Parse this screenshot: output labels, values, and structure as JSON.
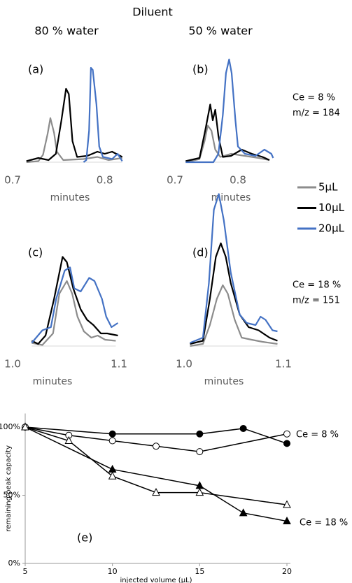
{
  "figure": {
    "title": "Diluent",
    "columns": [
      "80 % water",
      "50 % water"
    ],
    "row_notes": [
      [
        "Ce = 8 %",
        "m/z = 184"
      ],
      [
        "Ce = 18 %",
        "m/z = 151"
      ]
    ]
  },
  "chart_data": [
    {
      "type": "line",
      "panel": "(a)",
      "xlabel": "minutes",
      "xlim": [
        0.7,
        0.82
      ],
      "xticks": [
        0.7,
        0.8
      ],
      "ylim": [
        0,
        100
      ],
      "series": [
        {
          "name": "5µL",
          "color": "#8c8c8c",
          "x": [
            0.715,
            0.728,
            0.733,
            0.738,
            0.741,
            0.745,
            0.748,
            0.755,
            0.777,
            0.792,
            0.804,
            0.819
          ],
          "values": [
            0,
            1,
            7,
            27,
            42,
            28,
            10,
            2,
            3,
            5,
            2,
            4
          ]
        },
        {
          "name": "10µL",
          "color": "#000000",
          "x": [
            0.715,
            0.728,
            0.739,
            0.747,
            0.753,
            0.758,
            0.761,
            0.765,
            0.77,
            0.781,
            0.792,
            0.8,
            0.808,
            0.819
          ],
          "values": [
            1,
            4,
            2,
            8,
            40,
            70,
            65,
            20,
            5,
            6,
            10,
            8,
            10,
            5
          ]
        },
        {
          "name": "20µL",
          "color": "#4472c4",
          "x": [
            0.777,
            0.78,
            0.783,
            0.785,
            0.787,
            0.791,
            0.794,
            0.798,
            0.808,
            0.814,
            0.819
          ],
          "values": [
            0,
            2,
            30,
            90,
            88,
            55,
            15,
            5,
            3,
            8,
            1
          ]
        }
      ]
    },
    {
      "type": "line",
      "panel": "(b)",
      "xlabel": "minutes",
      "xlim": [
        0.7,
        0.86
      ],
      "xticks": [
        0.7,
        0.8
      ],
      "ylim": [
        0,
        100
      ],
      "series": [
        {
          "color": "#8c8c8c",
          "x": [
            0.717,
            0.739,
            0.747,
            0.752,
            0.758,
            0.764,
            0.772,
            0.789,
            0.811,
            0.833,
            0.85
          ],
          "values": [
            0,
            3,
            20,
            35,
            30,
            12,
            5,
            8,
            6,
            4,
            2
          ]
        },
        {
          "color": "#000000",
          "x": [
            0.717,
            0.739,
            0.748,
            0.756,
            0.76,
            0.764,
            0.769,
            0.776,
            0.789,
            0.806,
            0.822,
            0.839,
            0.85
          ],
          "values": [
            1,
            4,
            30,
            55,
            40,
            50,
            25,
            5,
            6,
            12,
            8,
            5,
            2
          ]
        },
        {
          "color": "#4472c4",
          "x": [
            0.717,
            0.761,
            0.769,
            0.776,
            0.781,
            0.786,
            0.79,
            0.796,
            0.8,
            0.811,
            0.828,
            0.842,
            0.853,
            0.856
          ],
          "values": [
            0,
            0,
            8,
            45,
            85,
            98,
            85,
            40,
            15,
            8,
            6,
            12,
            8,
            4
          ]
        }
      ]
    },
    {
      "type": "line",
      "panel": "(c)",
      "xlabel": "minutes",
      "xlim": [
        1.0,
        1.1
      ],
      "xticks": [
        {
          "value": 1.0,
          "label": "1.0"
        },
        1.1
      ],
      "ylim": [
        0,
        140
      ],
      "series": [
        {
          "color": "#8c8c8c",
          "x": [
            1.018,
            1.028,
            1.038,
            1.044,
            1.051,
            1.056,
            1.061,
            1.067,
            1.074,
            1.08,
            1.087,
            1.097
          ],
          "values": [
            3,
            1,
            12,
            50,
            62,
            50,
            28,
            14,
            8,
            10,
            6,
            5
          ]
        },
        {
          "color": "#000000",
          "x": [
            1.018,
            1.024,
            1.031,
            1.039,
            1.047,
            1.051,
            1.057,
            1.064,
            1.07,
            1.076,
            1.083,
            1.089,
            1.099
          ],
          "values": [
            5,
            2,
            10,
            45,
            85,
            80,
            55,
            35,
            25,
            20,
            12,
            12,
            10
          ]
        },
        {
          "color": "#4472c4",
          "x": [
            1.018,
            1.028,
            1.036,
            1.041,
            1.049,
            1.054,
            1.058,
            1.064,
            1.072,
            1.077,
            1.084,
            1.088,
            1.093,
            1.099
          ],
          "values": [
            3,
            15,
            18,
            45,
            72,
            75,
            55,
            52,
            65,
            62,
            45,
            28,
            18,
            22
          ]
        }
      ]
    },
    {
      "type": "line",
      "panel": "(d)",
      "xlabel": "minutes",
      "xlim": [
        1.0,
        1.1
      ],
      "xticks": [
        {
          "value": 1.0,
          "label": "1.0"
        },
        1.1
      ],
      "ylim": [
        0,
        140
      ],
      "series": [
        {
          "color": "#8c8c8c",
          "x": [
            1.006,
            1.019,
            1.026,
            1.033,
            1.039,
            1.044,
            1.051,
            1.058,
            1.068,
            1.079,
            1.094
          ],
          "values": [
            0,
            2,
            20,
            45,
            58,
            50,
            25,
            8,
            6,
            4,
            2
          ]
        },
        {
          "color": "#000000",
          "x": [
            1.006,
            1.019,
            1.026,
            1.032,
            1.037,
            1.042,
            1.047,
            1.056,
            1.065,
            1.075,
            1.086,
            1.094
          ],
          "values": [
            2,
            5,
            45,
            85,
            98,
            85,
            60,
            30,
            18,
            15,
            8,
            5
          ]
        },
        {
          "color": "#4472c4",
          "x": [
            1.006,
            1.019,
            1.025,
            1.03,
            1.035,
            1.04,
            1.047,
            1.056,
            1.063,
            1.072,
            1.077,
            1.082,
            1.089,
            1.094
          ],
          "values": [
            3,
            8,
            60,
            130,
            145,
            120,
            70,
            30,
            22,
            20,
            28,
            25,
            15,
            14
          ]
        }
      ]
    },
    {
      "type": "marker-line",
      "panel": "(e)",
      "xlabel": "injected volume (µL)",
      "ylabel": "remaining peak capacity",
      "annotations": [
        "Ce = 8 %",
        "Ce = 18 %"
      ],
      "xlim": [
        5,
        20
      ],
      "xticks": [
        5,
        10,
        15,
        20
      ],
      "ylim": [
        0,
        110
      ],
      "yticks": [
        {
          "value": 0,
          "label": "0%"
        },
        {
          "value": 50,
          "label": "50%"
        },
        {
          "value": 100,
          "label": "100%"
        }
      ],
      "series": [
        {
          "color": "#000000",
          "marker": "circle",
          "marker_fill": "#000000",
          "x": [
            5,
            10,
            15,
            17.5,
            20
          ],
          "values": [
            100,
            95,
            95,
            99,
            88
          ]
        },
        {
          "color": "#000000",
          "marker": "circle",
          "marker_fill": "#ffffff",
          "x": [
            5,
            7.5,
            10,
            12.5,
            15,
            20
          ],
          "values": [
            100,
            94,
            90,
            86,
            82,
            95
          ]
        },
        {
          "color": "#000000",
          "marker": "triangle",
          "marker_fill": "#000000",
          "x": [
            5,
            10,
            15,
            17.5,
            20
          ],
          "values": [
            100,
            69,
            57,
            37,
            31
          ]
        },
        {
          "color": "#000000",
          "marker": "triangle",
          "marker_fill": "#ffffff",
          "x": [
            5,
            7.5,
            10,
            12.5,
            15,
            20
          ],
          "values": [
            100,
            90,
            64,
            52,
            52,
            43
          ]
        }
      ]
    }
  ]
}
